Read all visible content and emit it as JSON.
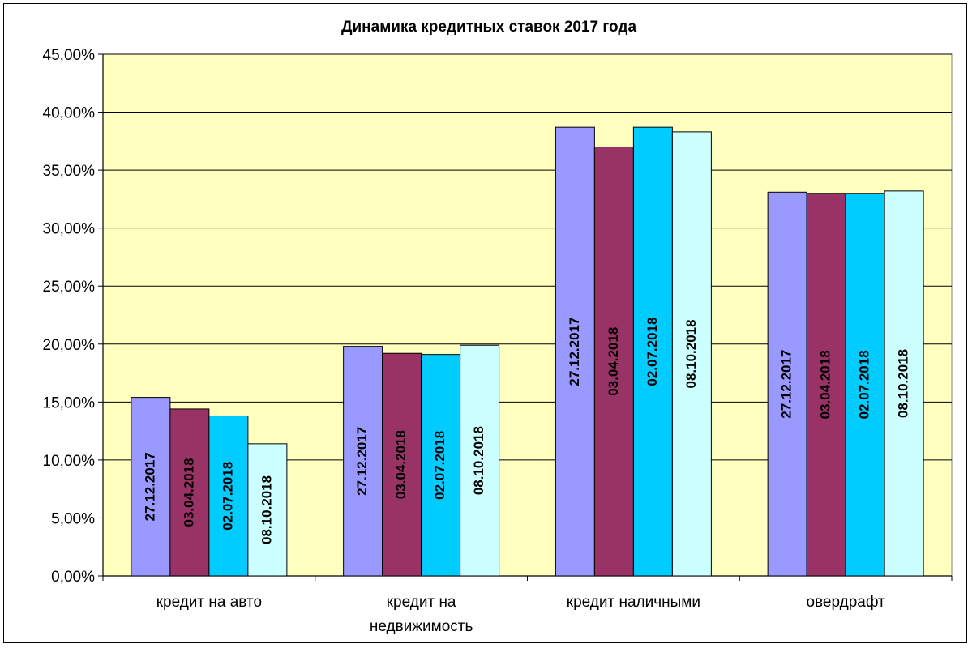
{
  "chart_data": {
    "type": "bar",
    "title": "Динамика кредитных ставок  2017 года",
    "xlabel": "",
    "ylabel": "",
    "ylim": [
      0,
      0.45
    ],
    "ytick_step": 0.05,
    "ytick_labels": [
      "0,00%",
      "5,00%",
      "10,00%",
      "15,00%",
      "20,00%",
      "25,00%",
      "30,00%",
      "35,00%",
      "40,00%",
      "45,00%"
    ],
    "grid": true,
    "legend": "none",
    "categories": [
      [
        "кредит на авто"
      ],
      [
        "кредит на",
        "недвижимость"
      ],
      [
        "кредит наличными"
      ],
      [
        "овердрафт"
      ]
    ],
    "series": [
      {
        "name": "27.12.2017",
        "color": "#9999FF",
        "values": [
          0.154,
          0.198,
          0.387,
          0.331
        ]
      },
      {
        "name": "03.04.2018",
        "color": "#993366",
        "values": [
          0.144,
          0.192,
          0.37,
          0.33
        ]
      },
      {
        "name": "02.07.2018",
        "color": "#00CCFF",
        "values": [
          0.138,
          0.191,
          0.387,
          0.33
        ]
      },
      {
        "name": "08.10.2018",
        "color": "#CCFFFF",
        "values": [
          0.114,
          0.199,
          0.383,
          0.332
        ]
      }
    ],
    "plot_background": "#FFFFC0"
  }
}
